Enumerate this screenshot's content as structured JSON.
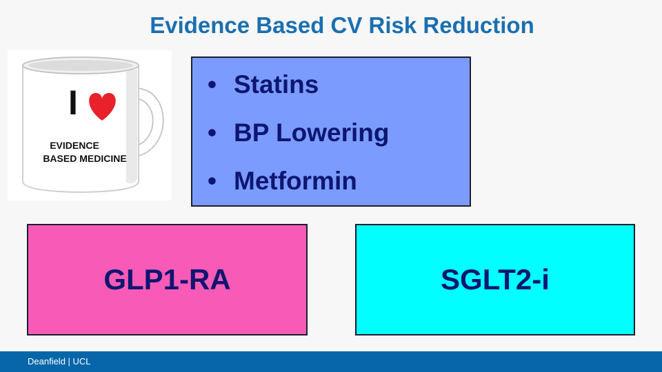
{
  "slide": {
    "title": "Evidence Based CV Risk Reduction",
    "mug": {
      "line1": "I",
      "line2": "EVIDENCE",
      "line3": "BASED MEDICINE",
      "heart_color": "#e8212a"
    },
    "bullets": [
      {
        "marker": "•",
        "text": "Statins"
      },
      {
        "marker": "•",
        "text": "BP Lowering"
      },
      {
        "marker": "•",
        "text": "Metformin"
      }
    ],
    "boxes": {
      "left": {
        "label": "GLP1-RA",
        "color": "#f75bb7"
      },
      "right": {
        "label": "SGLT2-i",
        "color": "#00ffff"
      }
    },
    "bullet_box_color": "#7b9bff",
    "title_color": "#1b6fb0",
    "footer": {
      "text": "Deanfield | UCL",
      "color": "#0766a8"
    }
  }
}
